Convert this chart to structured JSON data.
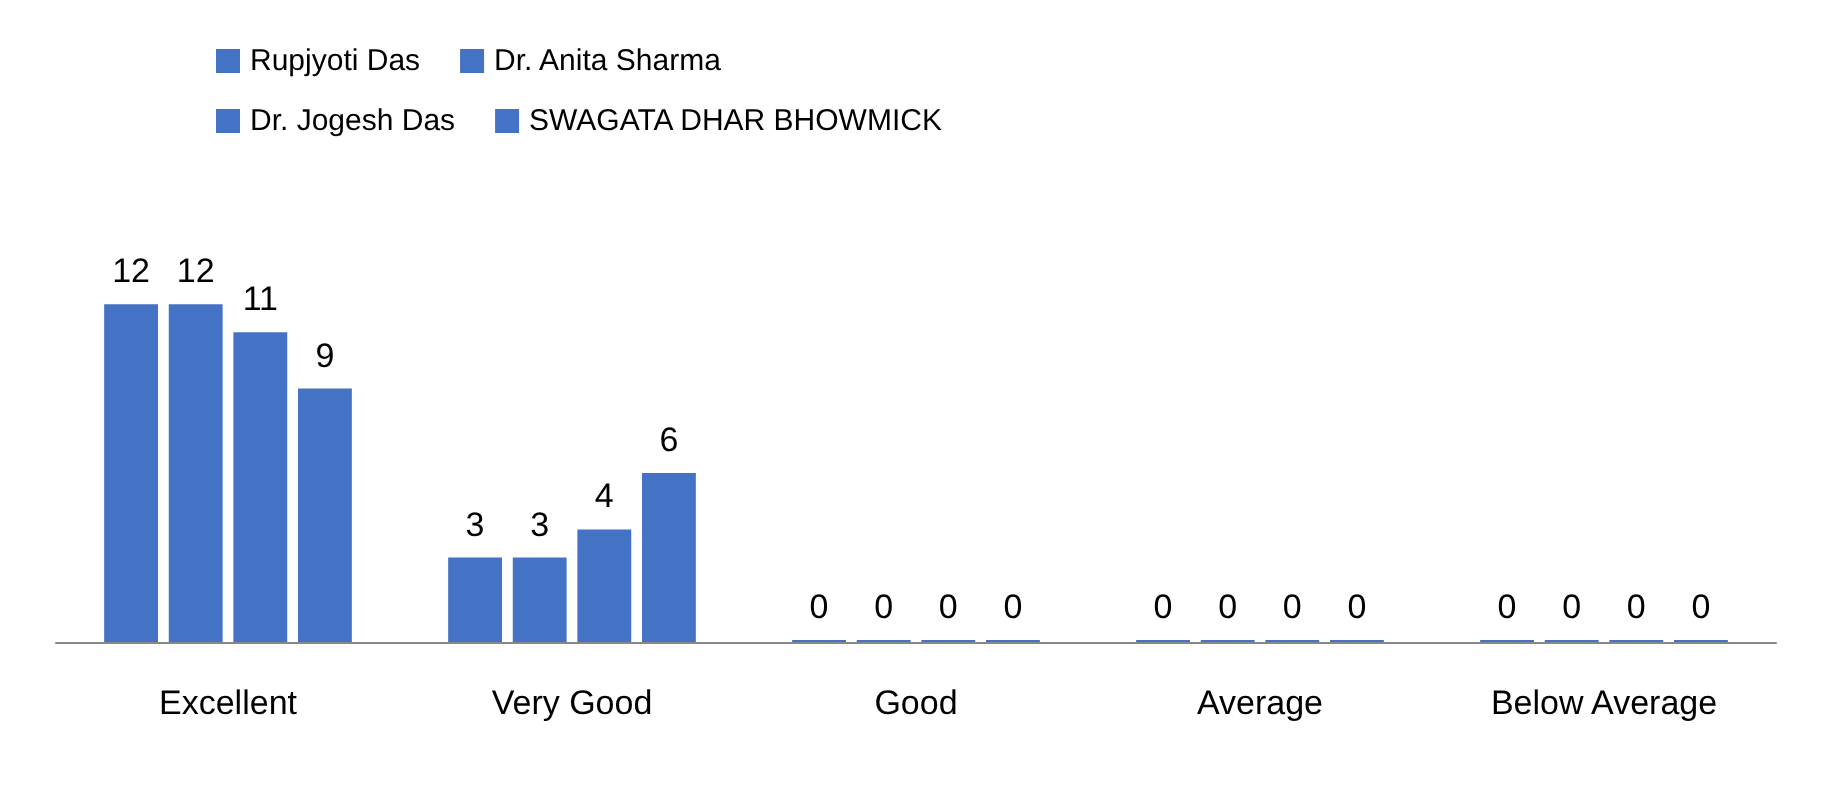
{
  "chart_data": {
    "type": "bar",
    "categories": [
      "Excellent",
      "Very Good",
      "Good",
      "Average",
      "Below Average"
    ],
    "series": [
      {
        "name": "Rupjyoti Das",
        "color": "#4472c4",
        "values": [
          12,
          3,
          0,
          0,
          0
        ]
      },
      {
        "name": "Dr. Anita Sharma",
        "color": "#4472c4",
        "values": [
          12,
          3,
          0,
          0,
          0
        ]
      },
      {
        "name": "Dr. Jogesh Das",
        "color": "#4472c4",
        "values": [
          11,
          4,
          0,
          0,
          0
        ]
      },
      {
        "name": "SWAGATA DHAR BHOWMICK",
        "color": "#4472c4",
        "values": [
          9,
          6,
          0,
          0,
          0
        ]
      }
    ],
    "data_labels": true,
    "legend": "top"
  }
}
